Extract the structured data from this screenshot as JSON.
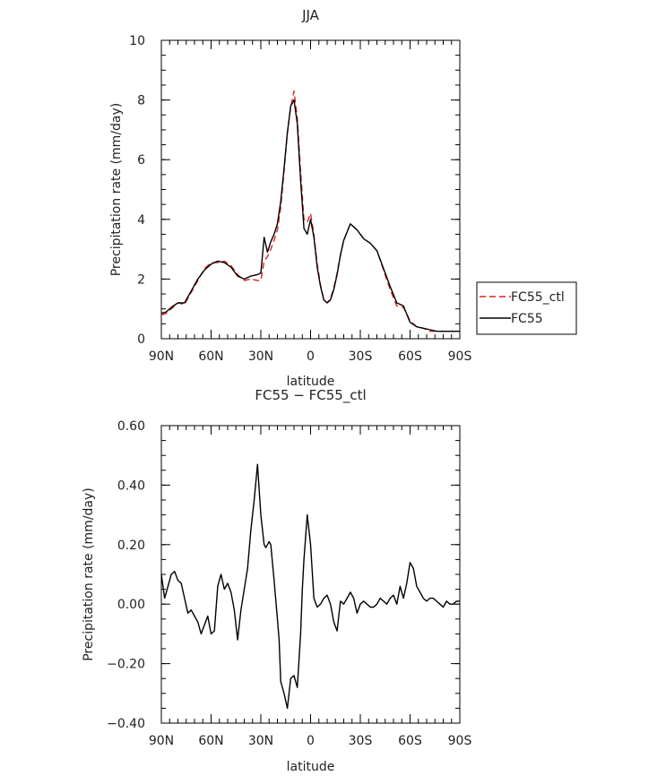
{
  "chart_data": [
    {
      "type": "line",
      "title": "JJA",
      "xlabel": "latitude",
      "ylabel": "Precipitation rate (mm/day)",
      "x_ticks": [
        "90N",
        "60N",
        "30N",
        "0",
        "30S",
        "60S",
        "90S"
      ],
      "y_ticks": [
        "0",
        "2",
        "4",
        "6",
        "8",
        "10"
      ],
      "xlim": [
        90,
        -90
      ],
      "ylim": [
        0,
        10
      ],
      "legend_position": "right",
      "series": [
        {
          "name": "FC55_ctl",
          "style": "dashed",
          "color": "#e02020",
          "x": [
            90,
            87,
            84,
            80,
            76,
            72,
            68,
            64,
            60,
            56,
            52,
            48,
            44,
            40,
            36,
            32,
            30,
            28,
            26,
            24,
            22,
            20,
            18,
            16,
            14,
            12,
            10,
            8,
            6,
            4,
            2,
            0,
            -2,
            -4,
            -6,
            -8,
            -10,
            -12,
            -14,
            -16,
            -18,
            -20,
            -24,
            -28,
            -32,
            -36,
            -40,
            -44,
            -48,
            -52,
            -56,
            -60,
            -64,
            -68,
            -72,
            -76,
            -80,
            -84,
            -88,
            -90
          ],
          "y": [
            0.8,
            0.85,
            1.0,
            1.2,
            1.15,
            1.55,
            1.95,
            2.35,
            2.55,
            2.55,
            2.6,
            2.45,
            2.15,
            1.95,
            2.0,
            1.95,
            1.95,
            2.6,
            2.75,
            3.0,
            3.3,
            3.65,
            4.4,
            5.6,
            6.9,
            7.75,
            8.3,
            7.4,
            5.6,
            4.0,
            3.9,
            4.2,
            3.5,
            2.5,
            1.8,
            1.3,
            1.2,
            1.35,
            1.7,
            2.2,
            2.8,
            3.3,
            3.85,
            3.65,
            3.35,
            3.2,
            2.95,
            2.3,
            1.65,
            1.1,
            1.05,
            0.6,
            0.4,
            0.35,
            0.25,
            0.25,
            0.25,
            0.25,
            0.25,
            0.25
          ]
        },
        {
          "name": "FC55",
          "style": "solid",
          "color": "#000000",
          "x": [
            90,
            87,
            84,
            80,
            76,
            72,
            68,
            64,
            60,
            56,
            52,
            48,
            44,
            40,
            36,
            32,
            30,
            28,
            26,
            24,
            22,
            20,
            18,
            16,
            14,
            12,
            10,
            8,
            6,
            4,
            2,
            0,
            -2,
            -4,
            -6,
            -8,
            -10,
            -12,
            -14,
            -16,
            -18,
            -20,
            -24,
            -28,
            -32,
            -36,
            -40,
            -44,
            -48,
            -52,
            -56,
            -60,
            -64,
            -68,
            -72,
            -76,
            -80,
            -84,
            -88,
            -90
          ],
          "y": [
            0.85,
            0.9,
            1.05,
            1.2,
            1.2,
            1.6,
            2.0,
            2.3,
            2.5,
            2.6,
            2.55,
            2.4,
            2.1,
            2.0,
            2.1,
            2.15,
            2.2,
            3.4,
            2.9,
            3.25,
            3.5,
            3.85,
            4.6,
            5.7,
            6.9,
            7.8,
            8.0,
            7.2,
            5.3,
            3.7,
            3.5,
            4.0,
            3.4,
            2.4,
            1.75,
            1.3,
            1.2,
            1.3,
            1.65,
            2.15,
            2.8,
            3.3,
            3.85,
            3.65,
            3.35,
            3.2,
            2.95,
            2.35,
            1.75,
            1.2,
            1.1,
            0.55,
            0.4,
            0.35,
            0.3,
            0.25,
            0.25,
            0.25,
            0.25,
            0.25
          ]
        }
      ]
    },
    {
      "type": "line",
      "title": "FC55 − FC55_ctl",
      "xlabel": "latitude",
      "ylabel": "Precipitation rate (mm/day)",
      "x_ticks": [
        "90N",
        "60N",
        "30N",
        "0",
        "30S",
        "60S",
        "90S"
      ],
      "y_ticks": [
        "−0.40",
        "−0.20",
        "0.00",
        "0.20",
        "0.40",
        "0.60"
      ],
      "xlim": [
        90,
        -90
      ],
      "ylim": [
        -0.4,
        0.6
      ],
      "series": [
        {
          "color": "#000000",
          "x": [
            90,
            88,
            86,
            84,
            82,
            80,
            78,
            76,
            74,
            72,
            70,
            68,
            66,
            64,
            62,
            60,
            58,
            56,
            54,
            52,
            50,
            48,
            46,
            44,
            42,
            40,
            38,
            36,
            34,
            32,
            30,
            28,
            27,
            26,
            25,
            24,
            22,
            20,
            19,
            18,
            16,
            14,
            12,
            10,
            8,
            6,
            5,
            4,
            2,
            0,
            -2,
            -4,
            -6,
            -8,
            -10,
            -12,
            -14,
            -16,
            -18,
            -20,
            -22,
            -24,
            -26,
            -28,
            -30,
            -32,
            -34,
            -36,
            -38,
            -40,
            -42,
            -44,
            -46,
            -48,
            -50,
            -52,
            -54,
            -56,
            -58,
            -60,
            -62,
            -64,
            -66,
            -68,
            -70,
            -72,
            -74,
            -76,
            -78,
            -80,
            -82,
            -84,
            -86,
            -88,
            -90
          ],
          "y": [
            0.1,
            0.02,
            0.06,
            0.1,
            0.11,
            0.08,
            0.07,
            0.02,
            -0.03,
            -0.02,
            -0.04,
            -0.06,
            -0.1,
            -0.07,
            -0.04,
            -0.1,
            -0.09,
            0.06,
            0.1,
            0.05,
            0.07,
            0.04,
            -0.02,
            -0.12,
            -0.02,
            0.05,
            0.12,
            0.25,
            0.35,
            0.47,
            0.3,
            0.2,
            0.19,
            0.2,
            0.21,
            0.2,
            0.08,
            -0.05,
            -0.12,
            -0.26,
            -0.3,
            -0.35,
            -0.25,
            -0.24,
            -0.28,
            -0.1,
            0.05,
            0.15,
            0.3,
            0.2,
            0.02,
            -0.01,
            0.0,
            0.02,
            0.03,
            0.0,
            -0.06,
            -0.09,
            0.01,
            0.0,
            0.02,
            0.04,
            0.02,
            -0.03,
            0.0,
            0.01,
            0.0,
            -0.01,
            -0.01,
            0.0,
            0.02,
            0.01,
            0.0,
            0.02,
            0.03,
            0.0,
            0.06,
            0.02,
            0.07,
            0.14,
            0.12,
            0.06,
            0.04,
            0.02,
            0.01,
            0.02,
            0.02,
            0.01,
            0.0,
            -0.01,
            0.01,
            0.0,
            0.0,
            0.01,
            0.01
          ]
        }
      ]
    }
  ]
}
